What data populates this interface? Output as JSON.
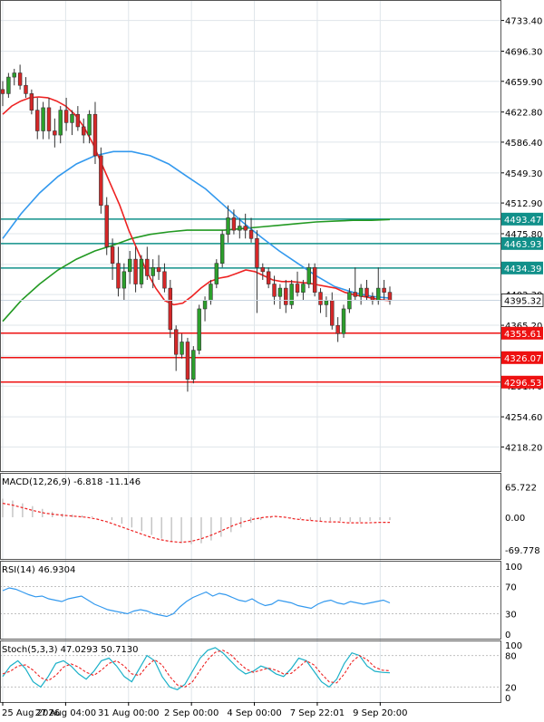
{
  "colors": {
    "bull": "#2ca02c",
    "bear": "#d62728",
    "wick": "#333333",
    "ma_fast": "#ee2222",
    "ma_mid": "#3399ee",
    "ma_slow": "#229922",
    "support_line": "#ee1111",
    "resistance_line": "#11908a",
    "grid": "#dfe5ea",
    "axis": "#000000"
  },
  "chart_data": [
    {
      "type": "candlestick",
      "panel": "price",
      "ylim": [
        4200,
        4745
      ],
      "y_ticks": [
        "4733.40",
        "4696.30",
        "4659.90",
        "4622.80",
        "4586.40",
        "4549.30",
        "4512.90",
        "4475.80",
        "4438.70",
        "4402.30",
        "4365.20",
        "4328.10",
        "4291.70",
        "4254.60",
        "4218.20"
      ],
      "x_labels": [
        "25 Aug 2026",
        "27 Aug 04:00",
        "31 Aug 00:00",
        "2 Sep 00:00",
        "4 Sep 00:00",
        "7 Sep 22:01",
        "9 Sep 20:00"
      ],
      "x_label_pos": [
        0,
        13,
        26,
        39,
        52,
        65,
        78
      ],
      "candles": [
        [
          4650,
          4660,
          4630,
          4645
        ],
        [
          4645,
          4670,
          4640,
          4665
        ],
        [
          4665,
          4675,
          4655,
          4670
        ],
        [
          4670,
          4680,
          4650,
          4655
        ],
        [
          4655,
          4665,
          4640,
          4645
        ],
        [
          4645,
          4650,
          4620,
          4625
        ],
        [
          4625,
          4640,
          4590,
          4600
        ],
        [
          4600,
          4635,
          4590,
          4628
        ],
        [
          4628,
          4640,
          4590,
          4600
        ],
        [
          4600,
          4615,
          4580,
          4595
        ],
        [
          4595,
          4630,
          4585,
          4625
        ],
        [
          4625,
          4640,
          4600,
          4610
        ],
        [
          4610,
          4625,
          4595,
          4620
        ],
        [
          4620,
          4630,
          4600,
          4605
        ],
        [
          4605,
          4615,
          4585,
          4595
        ],
        [
          4595,
          4625,
          4585,
          4620
        ],
        [
          4620,
          4635,
          4560,
          4570
        ],
        [
          4570,
          4580,
          4500,
          4510
        ],
        [
          4510,
          4520,
          4450,
          4460
        ],
        [
          4460,
          4470,
          4420,
          4440
        ],
        [
          4440,
          4460,
          4400,
          4410
        ],
        [
          4410,
          4440,
          4395,
          4430
        ],
        [
          4430,
          4455,
          4415,
          4445
        ],
        [
          4445,
          4460,
          4405,
          4415
        ],
        [
          4415,
          4450,
          4410,
          4445
        ],
        [
          4445,
          4460,
          4420,
          4425
        ],
        [
          4425,
          4445,
          4410,
          4435
        ],
        [
          4435,
          4450,
          4420,
          4430
        ],
        [
          4430,
          4440,
          4405,
          4410
        ],
        [
          4410,
          4420,
          4350,
          4360
        ],
        [
          4360,
          4365,
          4310,
          4330
        ],
        [
          4330,
          4355,
          4325,
          4345
        ],
        [
          4345,
          4350,
          4285,
          4300
        ],
        [
          4300,
          4340,
          4295,
          4335
        ],
        [
          4335,
          4390,
          4330,
          4385
        ],
        [
          4385,
          4400,
          4370,
          4395
        ],
        [
          4395,
          4420,
          4390,
          4415
        ],
        [
          4415,
          4445,
          4410,
          4440
        ],
        [
          4440,
          4480,
          4435,
          4475
        ],
        [
          4475,
          4510,
          4465,
          4495
        ],
        [
          4495,
          4505,
          4475,
          4480
        ],
        [
          4480,
          4495,
          4470,
          4485
        ],
        [
          4485,
          4500,
          4470,
          4480
        ],
        [
          4480,
          4495,
          4465,
          4470
        ],
        [
          4470,
          4480,
          4380,
          4435
        ],
        [
          4435,
          4440,
          4420,
          4430
        ],
        [
          4430,
          4435,
          4410,
          4415
        ],
        [
          4415,
          4425,
          4390,
          4400
        ],
        [
          4400,
          4415,
          4385,
          4410
        ],
        [
          4410,
          4420,
          4380,
          4390
        ],
        [
          4390,
          4420,
          4385,
          4415
        ],
        [
          4415,
          4430,
          4400,
          4405
        ],
        [
          4405,
          4420,
          4395,
          4415
        ],
        [
          4415,
          4440,
          4410,
          4435
        ],
        [
          4435,
          4440,
          4400,
          4405
        ],
        [
          4405,
          4410,
          4380,
          4390
        ],
        [
          4390,
          4400,
          4375,
          4395
        ],
        [
          4395,
          4405,
          4360,
          4365
        ],
        [
          4365,
          4375,
          4345,
          4355
        ],
        [
          4355,
          4390,
          4350,
          4385
        ],
        [
          4385,
          4410,
          4380,
          4405
        ],
        [
          4405,
          4435,
          4395,
          4400
        ],
        [
          4400,
          4415,
          4390,
          4410
        ],
        [
          4410,
          4420,
          4395,
          4400
        ],
        [
          4400,
          4405,
          4390,
          4395
        ],
        [
          4395,
          4435,
          4390,
          4410
        ],
        [
          4410,
          4420,
          4395,
          4405
        ],
        [
          4405,
          4412,
          4390,
          4395
        ]
      ],
      "ma_fast": [
        4620,
        4630,
        4636,
        4640,
        4641,
        4640,
        4636,
        4630,
        4620,
        4605,
        4585,
        4560,
        4535,
        4510,
        4480,
        4455,
        4430,
        4410,
        4395,
        4390,
        4392,
        4400,
        4410,
        4418,
        4422,
        4424,
        4428,
        4432,
        4430,
        4425,
        4420,
        4418,
        4418,
        4417,
        4416,
        4414,
        4412,
        4410,
        4405,
        4402,
        4400,
        4398,
        4396,
        4395
      ],
      "ma_fast_x": [
        0,
        1,
        2,
        3,
        4,
        5,
        6,
        7,
        8,
        9,
        10,
        11,
        12,
        13,
        14,
        15,
        16,
        17,
        18,
        19,
        20,
        21,
        22,
        23,
        24,
        25,
        26,
        27,
        28,
        29,
        30,
        31,
        32,
        33,
        34,
        35,
        36,
        37,
        38,
        39,
        40,
        41,
        42,
        43
      ],
      "ma_mid": [
        4470,
        4500,
        4525,
        4545,
        4560,
        4570,
        4575,
        4575,
        4570,
        4560,
        4545,
        4530,
        4510,
        4490,
        4472,
        4455,
        4440,
        4425,
        4412,
        4405,
        4400,
        4398
      ],
      "ma_slow": [
        4370,
        4395,
        4415,
        4432,
        4445,
        4455,
        4462,
        4470,
        4475,
        4478,
        4480,
        4480,
        4480,
        4482,
        4484,
        4486,
        4488,
        4490,
        4491,
        4492,
        4492,
        4493
      ],
      "levels": [
        {
          "value": 4493.47,
          "label": "4493.47",
          "kind": "resistance"
        },
        {
          "value": 4463.93,
          "label": "4463.93",
          "kind": "resistance"
        },
        {
          "value": 4434.39,
          "label": "4434.39",
          "kind": "resistance"
        },
        {
          "value": 4355.61,
          "label": "4355.61",
          "kind": "support"
        },
        {
          "value": 4326.07,
          "label": "4326.07",
          "kind": "support"
        },
        {
          "value": 4296.53,
          "label": "4296.53",
          "kind": "support"
        }
      ],
      "current_price": {
        "value": 4395.32,
        "label": "4395.32"
      }
    },
    {
      "type": "bar+line",
      "panel": "macd",
      "label": "MACD(12,26,9) -6.818 -11.146",
      "y_ticks": [
        "65.722",
        "0.00",
        "-69.778"
      ],
      "ylim": [
        -80,
        80
      ],
      "histogram": [
        40,
        36,
        30,
        24,
        18,
        12,
        8,
        6,
        4,
        2,
        0,
        -6,
        -14,
        -22,
        -30,
        -38,
        -46,
        -52,
        -56,
        -58,
        -56,
        -50,
        -42,
        -32,
        -22,
        -12,
        -6,
        -2,
        0,
        -2,
        -4,
        -6,
        -8,
        -8,
        -8,
        -10,
        -10,
        -8,
        -6,
        -6
      ],
      "signal": [
        30,
        26,
        20,
        14,
        9,
        6,
        4,
        2,
        0,
        -4,
        -10,
        -18,
        -26,
        -34,
        -42,
        -48,
        -52,
        -54,
        -52,
        -46,
        -38,
        -28,
        -18,
        -10,
        -4,
        0,
        2,
        0,
        -4,
        -6,
        -8,
        -10,
        -10,
        -12,
        -12,
        -12,
        -11,
        -11
      ]
    },
    {
      "type": "line",
      "panel": "rsi",
      "label": "RSI(14) 46.9304",
      "y_ticks": [
        "100",
        "70",
        "30",
        "0"
      ],
      "ylim": [
        0,
        100
      ],
      "values": [
        64,
        68,
        66,
        62,
        58,
        55,
        56,
        52,
        50,
        48,
        52,
        54,
        56,
        50,
        44,
        40,
        36,
        34,
        32,
        30,
        34,
        36,
        34,
        30,
        28,
        26,
        30,
        40,
        48,
        54,
        58,
        62,
        56,
        60,
        58,
        54,
        50,
        48,
        52,
        46,
        42,
        44,
        50,
        48,
        46,
        42,
        40,
        38,
        44,
        48,
        50,
        46,
        44,
        48,
        46,
        44,
        46,
        48,
        50,
        46
      ]
    },
    {
      "type": "line",
      "panel": "stoch",
      "label": "Stoch(5,3,3) 47.0293 50.7130",
      "y_ticks": [
        "100",
        "80",
        "20",
        "0"
      ],
      "ylim": [
        0,
        100
      ],
      "main": [
        40,
        60,
        70,
        55,
        30,
        20,
        40,
        65,
        70,
        60,
        45,
        35,
        50,
        70,
        75,
        60,
        40,
        30,
        55,
        80,
        70,
        40,
        20,
        15,
        25,
        50,
        75,
        90,
        95,
        85,
        70,
        55,
        45,
        50,
        60,
        55,
        45,
        40,
        55,
        75,
        70,
        50,
        30,
        20,
        35,
        65,
        85,
        80,
        60,
        50,
        48,
        47
      ],
      "signal": [
        45,
        50,
        60,
        62,
        52,
        38,
        32,
        42,
        58,
        64,
        58,
        48,
        42,
        52,
        65,
        70,
        60,
        45,
        42,
        60,
        72,
        62,
        40,
        24,
        20,
        30,
        52,
        72,
        86,
        90,
        82,
        68,
        55,
        48,
        52,
        56,
        52,
        45,
        46,
        58,
        70,
        62,
        45,
        30,
        28,
        45,
        68,
        80,
        72,
        58,
        52,
        51
      ]
    }
  ]
}
